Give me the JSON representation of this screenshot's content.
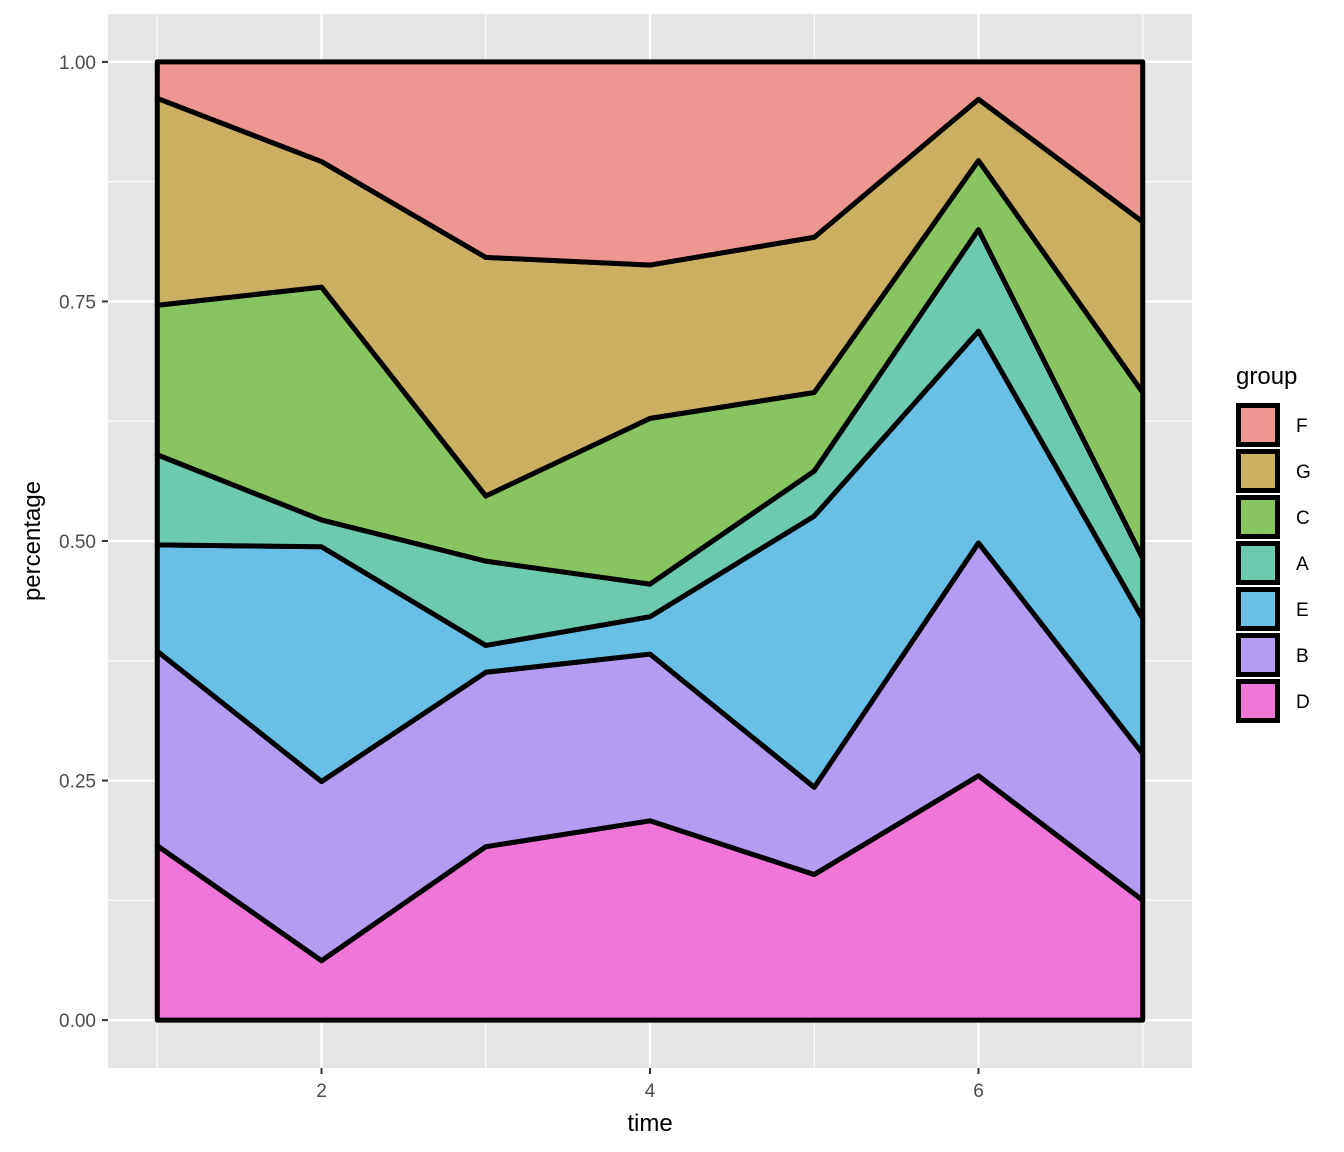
{
  "chart_data": {
    "type": "area",
    "stacked": true,
    "xlabel": "time",
    "ylabel": "percentage",
    "x": [
      1,
      2,
      3,
      4,
      5,
      6,
      7
    ],
    "xlim": [
      0.7,
      7.3
    ],
    "ylim": [
      -0.05,
      1.05
    ],
    "x_ticks": [
      2,
      4,
      6
    ],
    "x_tick_labels": [
      "2",
      "4",
      "6"
    ],
    "y_ticks": [
      0,
      0.25,
      0.5,
      0.75,
      1
    ],
    "y_tick_labels": [
      "0.00",
      "0.25",
      "0.50",
      "0.75",
      "1.00"
    ],
    "grid": true,
    "legend_title": "group",
    "legend_position": "right",
    "legend_order": [
      "F",
      "G",
      "C",
      "A",
      "E",
      "B",
      "D"
    ],
    "series": [
      {
        "name": "D",
        "color": "#F077D8",
        "values": [
          0.182,
          0.062,
          0.181,
          0.208,
          0.152,
          0.255,
          0.125
        ]
      },
      {
        "name": "B",
        "color": "#B39CF2",
        "values": [
          0.203,
          0.187,
          0.182,
          0.174,
          0.091,
          0.243,
          0.153
        ]
      },
      {
        "name": "E",
        "color": "#68C0E6",
        "values": [
          0.111,
          0.245,
          0.028,
          0.039,
          0.283,
          0.221,
          0.141
        ]
      },
      {
        "name": "A",
        "color": "#6CCBAE",
        "values": [
          0.094,
          0.028,
          0.088,
          0.034,
          0.047,
          0.106,
          0.063
        ]
      },
      {
        "name": "C",
        "color": "#88C45F",
        "values": [
          0.156,
          0.243,
          0.068,
          0.173,
          0.082,
          0.072,
          0.173
        ]
      },
      {
        "name": "G",
        "color": "#CBB062",
        "values": [
          0.216,
          0.131,
          0.249,
          0.16,
          0.162,
          0.064,
          0.178
        ]
      },
      {
        "name": "F",
        "color": "#EE9792",
        "values": [
          0.038,
          0.104,
          0.204,
          0.212,
          0.183,
          0.039,
          0.167
        ]
      }
    ]
  }
}
